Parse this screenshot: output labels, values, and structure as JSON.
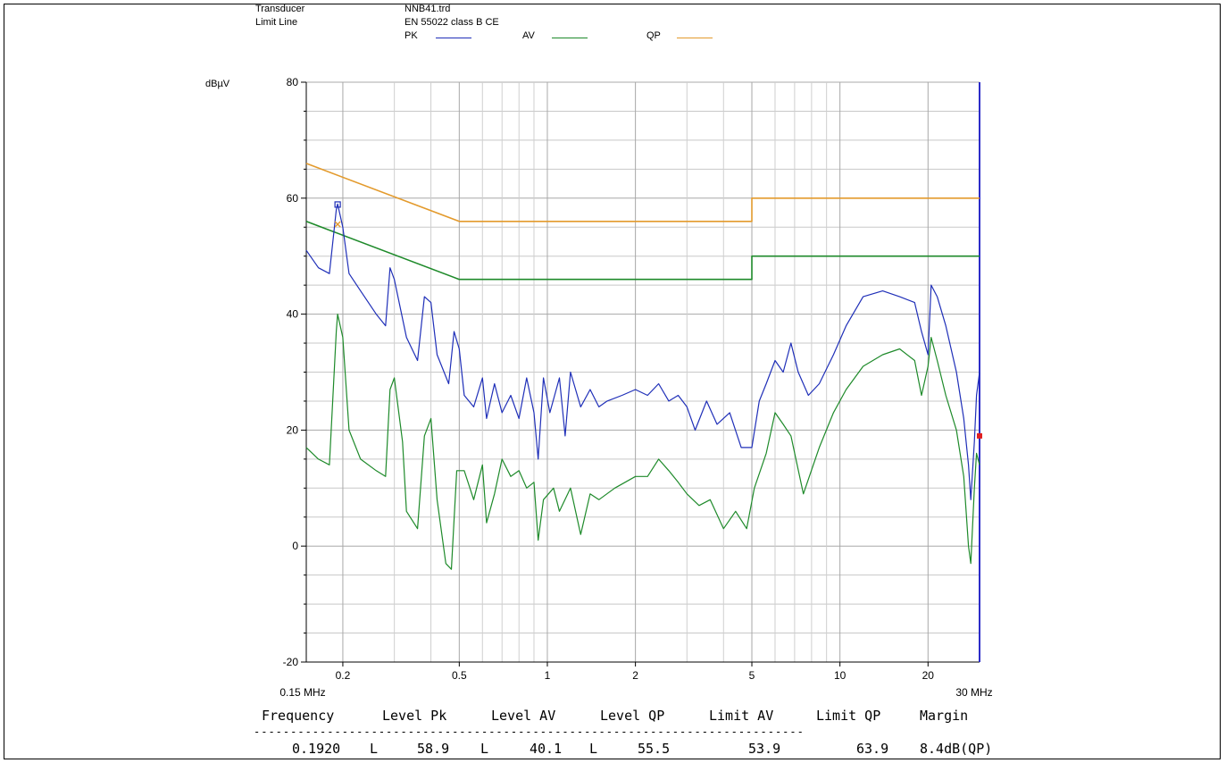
{
  "header": {
    "transducer_label": "Transducer",
    "transducer_value": "NNB41.trd",
    "limit_line_label": "Limit Line",
    "limit_line_value": "EN 55022 class B CE",
    "legend": [
      {
        "name": "PK",
        "color": "#1f2fb8"
      },
      {
        "name": "AV",
        "color": "#1e8a2a"
      },
      {
        "name": "QP",
        "color": "#e39a2c"
      }
    ]
  },
  "chart_data": {
    "type": "line",
    "ylabel": "dBµV",
    "x_scale": "log",
    "xlim_mhz": [
      0.15,
      30
    ],
    "ylim": [
      -20,
      80
    ],
    "yticks": [
      80,
      60,
      40,
      20,
      0,
      -20
    ],
    "xticks": [
      {
        "value": 0.2,
        "label": "0.2"
      },
      {
        "value": 0.5,
        "label": "0.5"
      },
      {
        "value": 1,
        "label": "1"
      },
      {
        "value": 2,
        "label": "2"
      },
      {
        "value": 5,
        "label": "5"
      },
      {
        "value": 10,
        "label": "10"
      },
      {
        "value": 20,
        "label": "20"
      }
    ],
    "x_start_label": "0.15 MHz",
    "x_end_label": "30 MHz",
    "series": [
      {
        "name": "QP",
        "color": "#e39a2c",
        "points": [
          [
            0.15,
            66
          ],
          [
            0.5,
            56
          ],
          [
            5,
            56
          ],
          [
            5,
            60
          ],
          [
            30,
            60
          ]
        ]
      },
      {
        "name": "AV",
        "color": "#1e8a2a",
        "points": [
          [
            0.15,
            56
          ],
          [
            0.5,
            46
          ],
          [
            5,
            46
          ],
          [
            5,
            50
          ],
          [
            30,
            50
          ]
        ]
      },
      {
        "name": "PK",
        "color": "#1f2fb8",
        "points": [
          [
            0.15,
            51
          ],
          [
            0.165,
            48
          ],
          [
            0.18,
            47
          ],
          [
            0.19,
            58
          ],
          [
            0.192,
            59
          ],
          [
            0.2,
            55
          ],
          [
            0.21,
            47
          ],
          [
            0.23,
            44
          ],
          [
            0.26,
            40
          ],
          [
            0.28,
            38
          ],
          [
            0.29,
            48
          ],
          [
            0.3,
            46
          ],
          [
            0.33,
            36
          ],
          [
            0.36,
            32
          ],
          [
            0.38,
            43
          ],
          [
            0.4,
            42
          ],
          [
            0.42,
            33
          ],
          [
            0.46,
            28
          ],
          [
            0.48,
            37
          ],
          [
            0.5,
            34
          ],
          [
            0.52,
            26
          ],
          [
            0.56,
            24
          ],
          [
            0.6,
            29
          ],
          [
            0.62,
            22
          ],
          [
            0.66,
            28
          ],
          [
            0.7,
            23
          ],
          [
            0.75,
            26
          ],
          [
            0.8,
            22
          ],
          [
            0.85,
            29
          ],
          [
            0.9,
            23
          ],
          [
            0.93,
            15
          ],
          [
            0.97,
            29
          ],
          [
            1.02,
            23
          ],
          [
            1.1,
            29
          ],
          [
            1.15,
            19
          ],
          [
            1.2,
            30
          ],
          [
            1.3,
            24
          ],
          [
            1.4,
            27
          ],
          [
            1.5,
            24
          ],
          [
            1.6,
            25
          ],
          [
            1.8,
            26
          ],
          [
            2,
            27
          ],
          [
            2.2,
            26
          ],
          [
            2.4,
            28
          ],
          [
            2.6,
            25
          ],
          [
            2.8,
            26
          ],
          [
            3,
            24
          ],
          [
            3.2,
            20
          ],
          [
            3.5,
            25
          ],
          [
            3.8,
            21
          ],
          [
            4.2,
            23
          ],
          [
            4.6,
            17
          ],
          [
            5,
            17
          ],
          [
            5.3,
            25
          ],
          [
            5.6,
            28
          ],
          [
            6,
            32
          ],
          [
            6.4,
            30
          ],
          [
            6.8,
            35
          ],
          [
            7.2,
            30
          ],
          [
            7.8,
            26
          ],
          [
            8.5,
            28
          ],
          [
            9.5,
            33
          ],
          [
            10.5,
            38
          ],
          [
            12,
            43
          ],
          [
            14,
            44
          ],
          [
            16,
            43
          ],
          [
            18,
            42
          ],
          [
            19,
            37
          ],
          [
            20,
            33
          ],
          [
            20.5,
            45
          ],
          [
            21.5,
            43
          ],
          [
            23,
            38
          ],
          [
            25,
            30
          ],
          [
            26.5,
            22
          ],
          [
            27.5,
            14
          ],
          [
            28,
            8
          ],
          [
            28.8,
            18
          ],
          [
            29.3,
            26
          ],
          [
            30,
            30
          ]
        ]
      },
      {
        "name": "AV",
        "color": "#1e8a2a",
        "points": [
          [
            0.15,
            17
          ],
          [
            0.165,
            15
          ],
          [
            0.18,
            14
          ],
          [
            0.19,
            37
          ],
          [
            0.192,
            40
          ],
          [
            0.2,
            36
          ],
          [
            0.21,
            20
          ],
          [
            0.23,
            15
          ],
          [
            0.26,
            13
          ],
          [
            0.28,
            12
          ],
          [
            0.29,
            27
          ],
          [
            0.3,
            29
          ],
          [
            0.32,
            18
          ],
          [
            0.33,
            6
          ],
          [
            0.36,
            3
          ],
          [
            0.38,
            19
          ],
          [
            0.4,
            22
          ],
          [
            0.42,
            8
          ],
          [
            0.45,
            -3
          ],
          [
            0.47,
            -4
          ],
          [
            0.49,
            13
          ],
          [
            0.52,
            13
          ],
          [
            0.56,
            8
          ],
          [
            0.6,
            14
          ],
          [
            0.62,
            4
          ],
          [
            0.66,
            9
          ],
          [
            0.7,
            15
          ],
          [
            0.75,
            12
          ],
          [
            0.8,
            13
          ],
          [
            0.85,
            10
          ],
          [
            0.9,
            11
          ],
          [
            0.93,
            1
          ],
          [
            0.97,
            8
          ],
          [
            1.05,
            10
          ],
          [
            1.1,
            6
          ],
          [
            1.2,
            10
          ],
          [
            1.3,
            2
          ],
          [
            1.4,
            9
          ],
          [
            1.5,
            8
          ],
          [
            1.7,
            10
          ],
          [
            2,
            12
          ],
          [
            2.2,
            12
          ],
          [
            2.4,
            15
          ],
          [
            2.6,
            13
          ],
          [
            2.8,
            11
          ],
          [
            3,
            9
          ],
          [
            3.3,
            7
          ],
          [
            3.6,
            8
          ],
          [
            4,
            3
          ],
          [
            4.4,
            6
          ],
          [
            4.8,
            3
          ],
          [
            5.1,
            10
          ],
          [
            5.6,
            16
          ],
          [
            6,
            23
          ],
          [
            6.4,
            21
          ],
          [
            6.8,
            19
          ],
          [
            7.5,
            9
          ],
          [
            8.5,
            17
          ],
          [
            9.5,
            23
          ],
          [
            10.5,
            27
          ],
          [
            12,
            31
          ],
          [
            14,
            33
          ],
          [
            16,
            34
          ],
          [
            18,
            32
          ],
          [
            19,
            26
          ],
          [
            20,
            31
          ],
          [
            20.5,
            36
          ],
          [
            21.5,
            32
          ],
          [
            23,
            26
          ],
          [
            25,
            20
          ],
          [
            26.5,
            12
          ],
          [
            27.5,
            0
          ],
          [
            28,
            -3
          ],
          [
            28.8,
            10
          ],
          [
            29.3,
            16
          ],
          [
            30,
            14
          ]
        ]
      }
    ]
  },
  "results_table": {
    "headers": [
      "Frequency",
      "Level Pk",
      "Level AV",
      "Level QP",
      "Limit AV",
      "Limit QP",
      "Margin"
    ],
    "separator": "---------------------------------------------------------------------------",
    "row": {
      "frequency": "0.1920",
      "pk_flag": "L",
      "level_pk": "58.9",
      "av_flag": "L",
      "level_av": "40.1",
      "qp_flag": "L",
      "level_qp": "55.5",
      "limit_av": "53.9",
      "limit_qp": "63.9",
      "margin": "8.4dB(QP)"
    }
  }
}
